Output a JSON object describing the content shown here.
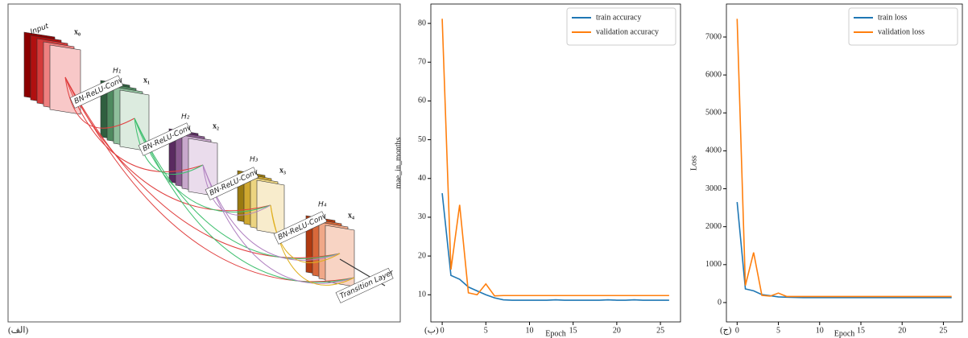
{
  "diagram": {
    "panel_label": "(الف)",
    "input_label": "Input",
    "x_labels": [
      "x₀",
      "x₁",
      "x₂",
      "x₃",
      "x₄"
    ],
    "h_labels": [
      "H₁",
      "H₂",
      "H₃",
      "H₄"
    ],
    "conv_labels": [
      "BN-ReLU-Conv",
      "BN-ReLU-Conv",
      "BN-ReLU-Conv",
      "BN-ReLU-Conv"
    ],
    "transition_label": "Transition Layer"
  },
  "chart_data": [
    {
      "type": "line",
      "panel_label": "(ب)",
      "xlabel": "Epoch",
      "ylabel": "mae_in_months",
      "x": [
        0,
        1,
        2,
        3,
        4,
        5,
        6,
        7,
        8,
        9,
        10,
        11,
        12,
        13,
        14,
        15,
        16,
        17,
        18,
        19,
        20,
        21,
        22,
        23,
        24,
        25,
        26
      ],
      "series": [
        {
          "name": "train accuracy",
          "color": "#1f77b4",
          "values": [
            36.2,
            15,
            14,
            12,
            11,
            10,
            9.2,
            8.7,
            8.6,
            8.6,
            8.6,
            8.6,
            8.6,
            8.7,
            8.6,
            8.6,
            8.6,
            8.6,
            8.6,
            8.7,
            8.6,
            8.6,
            8.7,
            8.6,
            8.6,
            8.6,
            8.6
          ]
        },
        {
          "name": "validation accuracy",
          "color": "#ff7f0e",
          "values": [
            81.2,
            16.5,
            33.2,
            10.5,
            10,
            12.8,
            9.7,
            9.8,
            9.8,
            9.8,
            9.8,
            9.8,
            9.8,
            9.8,
            9.8,
            9.8,
            9.8,
            9.8,
            9.8,
            9.8,
            9.8,
            9.8,
            9.8,
            9.8,
            9.8,
            9.8,
            9.8
          ]
        }
      ],
      "xlim": [
        -1.3,
        27.3
      ],
      "xticks": [
        0,
        5,
        10,
        15,
        20,
        25
      ],
      "ylim": [
        3,
        85
      ],
      "yticks": [
        10,
        20,
        30,
        40,
        50,
        60,
        70,
        80
      ],
      "legend": "upper right"
    },
    {
      "type": "line",
      "panel_label": "(ج)",
      "xlabel": "Epoch",
      "ylabel": "Loss",
      "x": [
        0,
        1,
        2,
        3,
        4,
        5,
        6,
        7,
        8,
        9,
        10,
        11,
        12,
        13,
        14,
        15,
        16,
        17,
        18,
        19,
        20,
        21,
        22,
        23,
        24,
        25,
        26
      ],
      "series": [
        {
          "name": "train loss",
          "color": "#1f77b4",
          "values": [
            2650,
            360,
            310,
            210,
            180,
            150,
            140,
            135,
            130,
            130,
            130,
            130,
            130,
            130,
            130,
            130,
            130,
            130,
            130,
            130,
            130,
            130,
            130,
            130,
            130,
            130,
            130
          ]
        },
        {
          "name": "validation loss",
          "color": "#ff7f0e",
          "values": [
            7480,
            450,
            1320,
            190,
            170,
            250,
            160,
            160,
            160,
            160,
            160,
            160,
            160,
            160,
            160,
            160,
            160,
            160,
            160,
            160,
            160,
            160,
            160,
            160,
            160,
            160,
            160
          ]
        }
      ],
      "xlim": [
        -1.3,
        27.3
      ],
      "xticks": [
        0,
        5,
        10,
        15,
        20,
        25
      ],
      "ylim": [
        -510,
        7870
      ],
      "yticks": [
        0,
        1000,
        2000,
        3000,
        4000,
        5000,
        6000,
        7000
      ],
      "legend": "upper right"
    }
  ]
}
